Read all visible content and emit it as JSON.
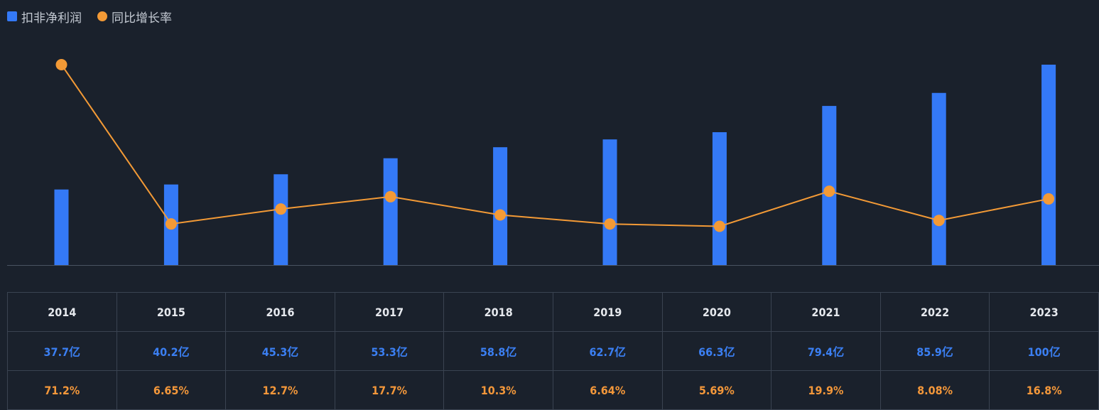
{
  "legend": {
    "bar_label": "扣非净利润",
    "line_label": "同比增长率"
  },
  "colors": {
    "bar": "#3479f6",
    "line": "#f39a36",
    "axis": "#4a5361",
    "background": "#1a212c"
  },
  "chart_data": {
    "type": "bar",
    "categories": [
      "2014",
      "2015",
      "2016",
      "2017",
      "2018",
      "2019",
      "2020",
      "2021",
      "2022",
      "2023"
    ],
    "series": [
      {
        "name": "扣非净利润",
        "kind": "bar",
        "unit": "亿",
        "values": [
          37.7,
          40.2,
          45.3,
          53.3,
          58.8,
          62.7,
          66.3,
          79.4,
          85.9,
          100
        ],
        "labels": [
          "37.7亿",
          "40.2亿",
          "45.3亿",
          "53.3亿",
          "58.8亿",
          "62.7亿",
          "66.3亿",
          "79.4亿",
          "85.9亿",
          "100亿"
        ]
      },
      {
        "name": "同比增长率",
        "kind": "line",
        "unit": "%",
        "values": [
          71.2,
          6.65,
          12.7,
          17.7,
          10.3,
          6.64,
          5.69,
          19.9,
          8.08,
          16.8
        ],
        "labels": [
          "71.2%",
          "6.65%",
          "12.7%",
          "17.7%",
          "10.3%",
          "6.64%",
          "5.69%",
          "19.9%",
          "8.08%",
          "16.8%"
        ]
      }
    ],
    "title": "",
    "xlabel": "",
    "ylabel": "",
    "bar_ylim": [
      0,
      100
    ],
    "line_ylim": [
      -10,
      71.2
    ],
    "grid": false,
    "legend_position": "top-left"
  }
}
